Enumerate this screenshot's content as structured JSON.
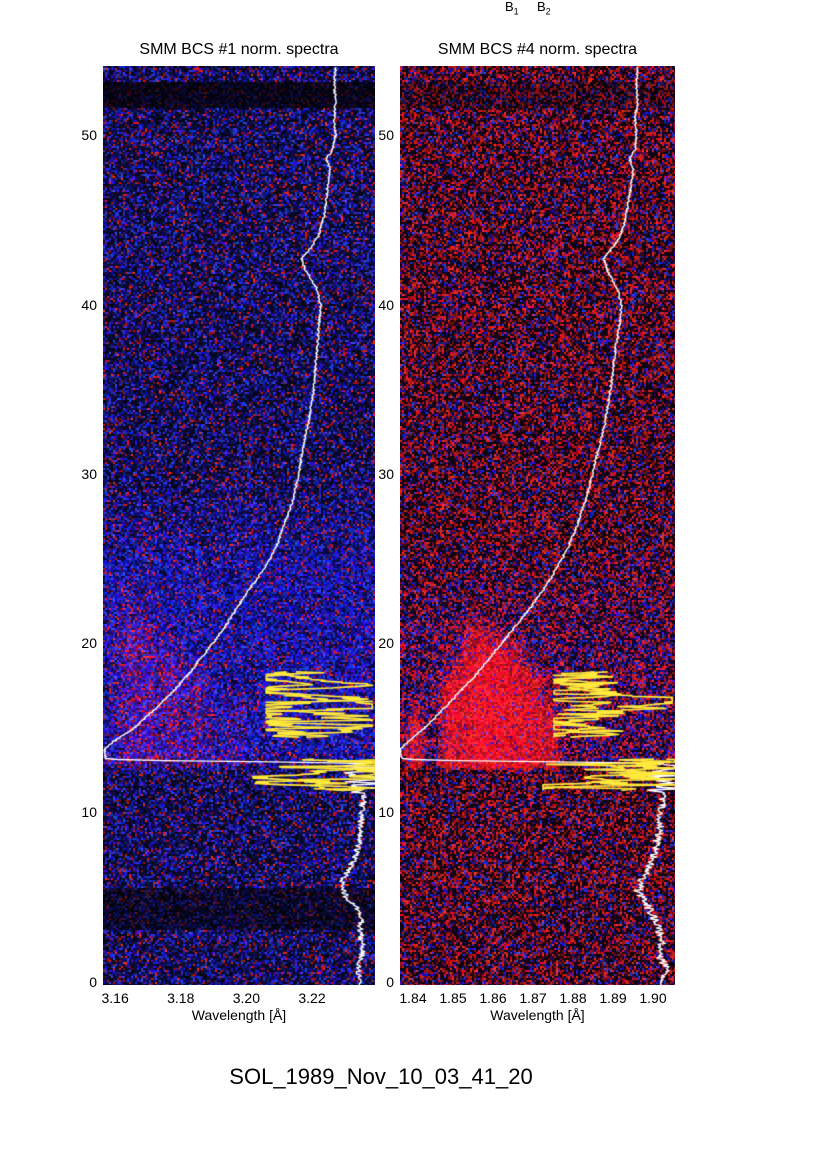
{
  "header": {
    "b1_base": "B",
    "b1_sub": "1",
    "b2_base": "B",
    "b2_sub": "2"
  },
  "caption": {
    "text": "SOL_1989_Nov_10_03_41_20"
  },
  "chart_data": [
    {
      "type": "heatmap",
      "title": "SMM BCS #1 norm. spectra",
      "xlabel": "Wavelength [Å]",
      "ylabel": "",
      "xlim": [
        3.1563,
        3.2392
      ],
      "xticks": [
        "3.16",
        "3.18",
        "3.20",
        "3.22"
      ],
      "xtick_values": [
        3.16,
        3.18,
        3.2,
        3.22
      ],
      "ylim": [
        -0.2,
        54.1
      ],
      "yticks": [
        0,
        10,
        20,
        30,
        40,
        50
      ],
      "grid": false,
      "legend": false,
      "colormap_note": "blue-dominated speckle noise with scattered red flecks on black",
      "noise": {
        "p_red": 0.1,
        "p_blue": 0.42,
        "base": [
          10,
          10,
          48
        ]
      },
      "blue_glow": {
        "t0": 12.3,
        "t1": 30,
        "strength": 0.4
      },
      "dark_bands": [
        [
          51.6,
          53.1,
          0.3
        ],
        [
          3.0,
          5.5,
          0.5
        ]
      ],
      "emission_bands": [
        {
          "center": 3.1665,
          "sigma": 0.0045,
          "t0": 12.4,
          "t1": 24,
          "strength": 0.35
        },
        {
          "center": 3.177,
          "sigma": 0.003,
          "t0": 12.4,
          "t1": 21,
          "strength": 0.3
        },
        {
          "center": 3.1855,
          "sigma": 0.0028,
          "t0": 12.4,
          "t1": 20,
          "strength": 0.25
        },
        {
          "center": 3.1965,
          "sigma": 0.002,
          "t0": 12.4,
          "t1": 18,
          "strength": 0.18
        }
      ],
      "overlays": {
        "white_color": "#ffffff",
        "yellow_color": "#ffe93a",
        "white_lightcurve": {
          "points": [
            [
              0,
              0.945
            ],
            [
              1,
              0.94
            ],
            [
              2,
              0.955
            ],
            [
              3,
              0.945
            ],
            [
              4,
              0.95
            ],
            [
              5,
              0.895
            ],
            [
              5.8,
              0.875
            ],
            [
              6.5,
              0.9
            ],
            [
              7.5,
              0.93
            ],
            [
              8.5,
              0.945
            ],
            [
              9.5,
              0.95
            ],
            [
              10.5,
              0.955
            ],
            [
              11.3,
              0.965
            ],
            [
              12,
              0.97
            ],
            [
              12.6,
              0.965
            ],
            [
              12.9,
              0.96
            ],
            [
              13,
              0.55
            ],
            [
              13.08,
              0.12
            ],
            [
              13.15,
              0.01
            ],
            [
              13.75,
              0.005
            ],
            [
              14.2,
              0.04
            ],
            [
              15,
              0.115
            ],
            [
              16,
              0.185
            ],
            [
              17,
              0.25
            ],
            [
              18,
              0.305
            ],
            [
              19,
              0.355
            ],
            [
              20,
              0.405
            ],
            [
              21,
              0.45
            ],
            [
              22,
              0.49
            ],
            [
              23,
              0.53
            ],
            [
              24,
              0.575
            ],
            [
              25,
              0.615
            ],
            [
              26,
              0.645
            ],
            [
              27,
              0.665
            ],
            [
              28,
              0.69
            ],
            [
              29,
              0.705
            ],
            [
              30,
              0.72
            ],
            [
              31,
              0.73
            ],
            [
              32,
              0.74
            ],
            [
              33,
              0.755
            ],
            [
              34,
              0.765
            ],
            [
              35,
              0.775
            ],
            [
              36,
              0.78
            ],
            [
              37,
              0.785
            ],
            [
              38,
              0.79
            ],
            [
              39,
              0.795
            ],
            [
              40,
              0.8
            ],
            [
              41,
              0.785
            ],
            [
              42,
              0.745
            ],
            [
              42.7,
              0.73
            ],
            [
              43.3,
              0.76
            ],
            [
              44,
              0.79
            ],
            [
              45,
              0.81
            ],
            [
              46,
              0.82
            ],
            [
              47,
              0.825
            ],
            [
              48,
              0.835
            ],
            [
              48.6,
              0.82
            ],
            [
              49.2,
              0.845
            ],
            [
              50,
              0.855
            ],
            [
              51,
              0.85
            ],
            [
              52,
              0.855
            ],
            [
              53,
              0.85
            ],
            [
              54.1,
              0.855
            ]
          ],
          "jitter_default": 0.004,
          "jitter_zones": [
            [
              0,
              11,
              0.012
            ],
            [
              11.2,
              12.8,
              0.08
            ]
          ]
        },
        "yellow_upper": {
          "t_range": [
            14.4,
            18.3
          ],
          "x_range": [
            0.6,
            0.99
          ],
          "start": 0.74,
          "step": 0.05,
          "walk": 0.22,
          "big_jump_p": 0.18,
          "passes": 2
        },
        "yellow_lower": {
          "t_range": [
            11.3,
            13.15
          ],
          "x_range": [
            0.55,
            1.0
          ],
          "start": 0.9,
          "step": 0.045,
          "walk": 0.26,
          "big_jump_p": 0.2,
          "passes": 2
        }
      }
    },
    {
      "type": "heatmap",
      "title": "SMM BCS #4 norm. spectra",
      "xlabel": "Wavelength [Å]",
      "ylabel": "",
      "xlim": [
        1.83675,
        1.9055
      ],
      "xticks": [
        "1.84",
        "1.85",
        "1.86",
        "1.87",
        "1.88",
        "1.89",
        "1.90"
      ],
      "xtick_values": [
        1.84,
        1.85,
        1.86,
        1.87,
        1.88,
        1.89,
        1.9
      ],
      "ylim": [
        -0.2,
        54.1
      ],
      "yticks": [
        0,
        10,
        20,
        30,
        40,
        50
      ],
      "grid": false,
      "legend": false,
      "colormap_note": "red-dominated speckle noise with blue flecks on black",
      "noise": {
        "p_red": 0.38,
        "p_blue": 0.2,
        "base": [
          20,
          4,
          22
        ]
      },
      "blue_glow": {
        "t0": 12.3,
        "t1": 26,
        "strength": 0.25
      },
      "dark_bands": [
        [
          51.6,
          53.1,
          0.7
        ]
      ],
      "emission_bands": [
        {
          "center": 1.8405,
          "sigma": 0.0013,
          "t0": 12.4,
          "t1": 17,
          "strength": 0.4
        },
        {
          "center": 1.8495,
          "sigma": 0.0016,
          "t0": 12.4,
          "t1": 19,
          "strength": 0.55
        },
        {
          "center": 1.856,
          "sigma": 0.003,
          "t0": 12.4,
          "t1": 22,
          "strength": 0.6
        },
        {
          "center": 1.8625,
          "sigma": 0.0035,
          "t0": 12.4,
          "t1": 21,
          "strength": 0.6
        },
        {
          "center": 1.8695,
          "sigma": 0.0025,
          "t0": 12.4,
          "t1": 19,
          "strength": 0.45
        },
        {
          "center": 1.8745,
          "sigma": 0.0018,
          "t0": 12.4,
          "t1": 17,
          "strength": 0.3
        }
      ],
      "overlays": {
        "white_color": "#ffffff",
        "yellow_color": "#ffe93a",
        "white_lightcurve": {
          "points": [
            [
              0,
              0.95
            ],
            [
              0.8,
              0.975
            ],
            [
              1.5,
              0.94
            ],
            [
              2.5,
              0.955
            ],
            [
              3.5,
              0.93
            ],
            [
              4.5,
              0.9
            ],
            [
              5.3,
              0.865
            ],
            [
              6,
              0.88
            ],
            [
              7,
              0.915
            ],
            [
              8,
              0.93
            ],
            [
              9,
              0.945
            ],
            [
              10,
              0.95
            ],
            [
              11,
              0.96
            ],
            [
              12,
              0.965
            ],
            [
              12.9,
              0.96
            ],
            [
              13,
              0.5
            ],
            [
              13.08,
              0.1
            ],
            [
              13.15,
              0.005
            ],
            [
              13.75,
              0.0
            ],
            [
              14.2,
              0.03
            ],
            [
              15,
              0.09
            ],
            [
              16,
              0.15
            ],
            [
              17,
              0.21
            ],
            [
              18,
              0.27
            ],
            [
              19,
              0.32
            ],
            [
              20,
              0.37
            ],
            [
              21,
              0.42
            ],
            [
              22,
              0.47
            ],
            [
              23,
              0.515
            ],
            [
              24,
              0.555
            ],
            [
              25,
              0.59
            ],
            [
              26,
              0.62
            ],
            [
              27,
              0.645
            ],
            [
              28,
              0.665
            ],
            [
              29,
              0.685
            ],
            [
              30,
              0.7
            ],
            [
              31,
              0.715
            ],
            [
              32,
              0.73
            ],
            [
              33,
              0.745
            ],
            [
              34,
              0.755
            ],
            [
              35,
              0.765
            ],
            [
              36,
              0.775
            ],
            [
              37,
              0.78
            ],
            [
              38,
              0.79
            ],
            [
              39,
              0.8
            ],
            [
              40,
              0.805
            ],
            [
              41,
              0.79
            ],
            [
              42,
              0.755
            ],
            [
              42.7,
              0.74
            ],
            [
              43.3,
              0.77
            ],
            [
              44,
              0.8
            ],
            [
              45,
              0.82
            ],
            [
              46,
              0.83
            ],
            [
              47,
              0.84
            ],
            [
              48,
              0.85
            ],
            [
              48.6,
              0.835
            ],
            [
              49.2,
              0.855
            ],
            [
              50,
              0.86
            ],
            [
              51,
              0.855
            ],
            [
              52,
              0.865
            ],
            [
              53,
              0.86
            ],
            [
              54.1,
              0.865
            ]
          ],
          "jitter_default": 0.004,
          "jitter_zones": [
            [
              0,
              11,
              0.015
            ],
            [
              11.2,
              12.8,
              0.08
            ]
          ]
        },
        "yellow_upper": {
          "t_range": [
            14.4,
            18.3
          ],
          "x_range": [
            0.56,
            0.99
          ],
          "start": 0.74,
          "step": 0.05,
          "walk": 0.22,
          "big_jump_p": 0.18,
          "passes": 2
        },
        "yellow_lower": {
          "t_range": [
            11.3,
            13.15
          ],
          "x_range": [
            0.52,
            1.0
          ],
          "start": 0.9,
          "step": 0.045,
          "walk": 0.26,
          "big_jump_p": 0.2,
          "passes": 2
        }
      }
    }
  ]
}
